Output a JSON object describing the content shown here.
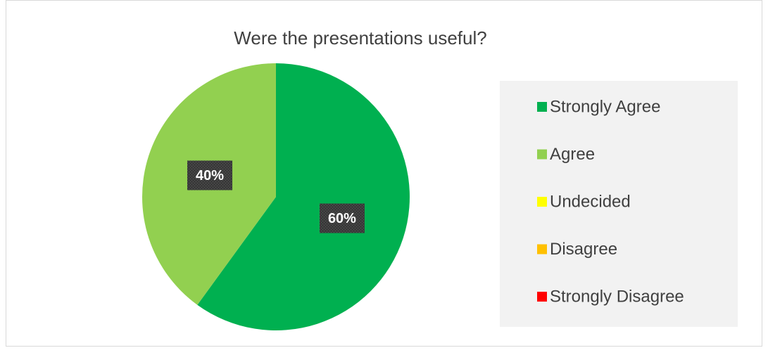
{
  "chart_data": {
    "type": "pie",
    "title": "Were the presentations useful?",
    "categories": [
      "Strongly Agree",
      "Agree",
      "Undecided",
      "Disagree",
      "Strongly Disagree"
    ],
    "values": [
      60,
      40,
      0,
      0,
      0
    ],
    "value_labels": [
      "60%",
      "40%",
      null,
      null,
      null
    ],
    "colors": [
      "#00b050",
      "#92d050",
      "#ffff00",
      "#ffc000",
      "#ff0000"
    ],
    "legend": "right"
  }
}
